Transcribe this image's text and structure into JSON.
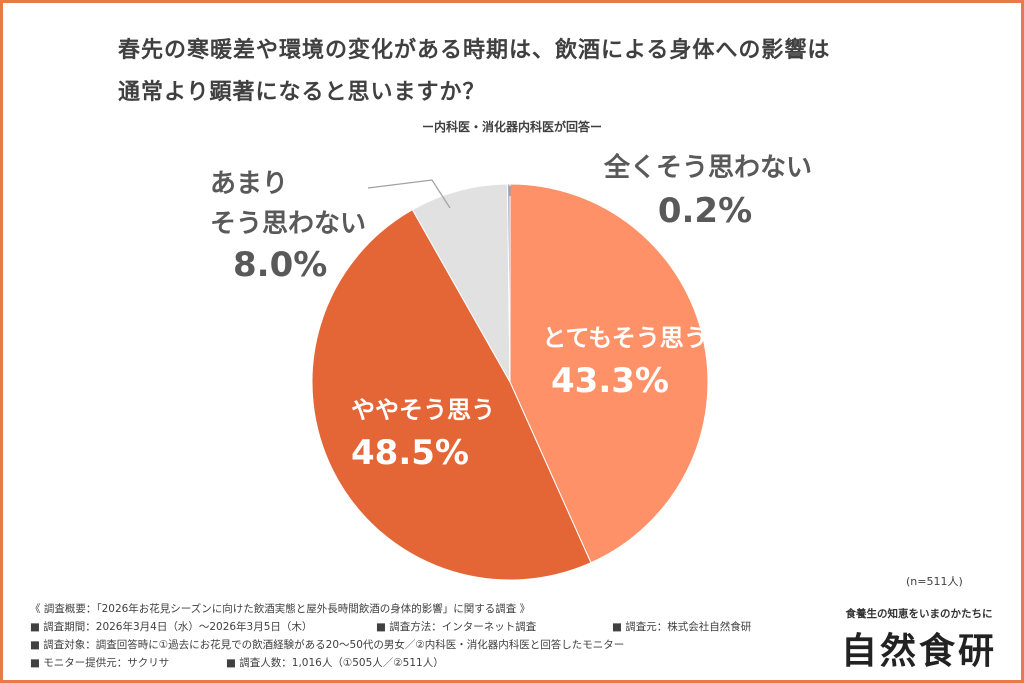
{
  "colors": {
    "frame": "#e8794a",
    "slice_a": "#ff9168",
    "slice_b": "#e46536",
    "slice_c": "#e1e1e1",
    "slice_d": "#9aa6c7",
    "label_light": "#ffffff",
    "label_dark": "#595959"
  },
  "chart_data": {
    "type": "pie",
    "title": "春先の寒暖差や環境の変化がある時期は、飲酒による身体への影響は通常より顕著になると思いますか？",
    "title_line1": "春先の寒暖差や環境の変化がある時期は、飲酒による身体への影響は",
    "title_line2": "通常より顕著になると思いますか？",
    "subtitle": "ー内科医・消化器内科医が回答ー",
    "slices": [
      {
        "label": "とてもそう思う",
        "value": 43.3,
        "value_label": "43.3%",
        "color": "#ff9168"
      },
      {
        "label": "ややそう思う",
        "value": 48.5,
        "value_label": "48.5%",
        "color": "#e46536"
      },
      {
        "label": "あまりそう思わない",
        "label_line1": "あまり",
        "label_line2": "そう思わない",
        "value": 8.0,
        "value_label": "8.0%",
        "color": "#e1e1e1"
      },
      {
        "label": "全くそう思わない",
        "value": 0.2,
        "value_label": "0.2%",
        "color": "#9aa6c7"
      }
    ],
    "sample_size": "(n=511人)"
  },
  "notes": {
    "line1": "《 調査概要：「2026年お花見シーズンに向けた飲酒実態と屋外長時間飲酒の身体的影響」に関する調査 》",
    "line2_a": "■ 調査期間：2026年3月4日（水）〜2026年3月5日（木）",
    "line2_b": "■ 調査方法：インターネット調査",
    "line2_c": "■ 調査元：株式会社自然食研",
    "line3": "■ 調査対象：調査回答時に①過去にお花見での飲酒経験がある20〜50代の男女／②内科医・消化器内科医と回答したモニター",
    "line4_a": "■ モニター提供元：サクリサ",
    "line4_b": "■ 調査人数：1,016人（①505人／②511人）"
  },
  "brand": {
    "tagline": "食養生の知恵をいまのかたちに",
    "logo": "自然食研"
  }
}
